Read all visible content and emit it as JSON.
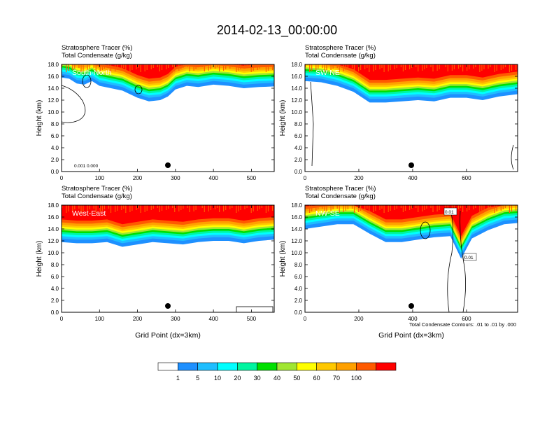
{
  "title": "2014-02-13_00:00:00",
  "colors": {
    "scale": [
      "#ffffff",
      "#1e90ff",
      "#1ebeff",
      "#00ffff",
      "#00f5a0",
      "#00e000",
      "#a0e632",
      "#ffff00",
      "#ffc800",
      "#ffa000",
      "#ff5a00",
      "#ff0000"
    ]
  },
  "colorbar": {
    "labels": [
      "1",
      "5",
      "10",
      "20",
      "30",
      "40",
      "50",
      "60",
      "70",
      "100"
    ]
  },
  "chart_data": [
    {
      "type": "heatmap",
      "panel_id": "south-north",
      "label_line1": "Stratosphere Tracer   (%)",
      "label_line2": "Total Condensate   (g/kg)",
      "inset_label": "South-North",
      "ylabel": "Height (km)",
      "xlabel": "",
      "xlim": [
        0,
        560
      ],
      "ylim": [
        0,
        18
      ],
      "xticks": [
        "0",
        "100",
        "200",
        "300",
        "400",
        "500"
      ],
      "xtick_values": [
        0,
        100,
        200,
        300,
        400,
        500
      ],
      "yticks": [
        "0.0",
        "2.0",
        "4.0",
        "6.0",
        "8.0",
        "10.0",
        "12.0",
        "14.0",
        "16.0",
        "18.0"
      ],
      "marker_x": 280,
      "contour_labels": [
        "0.001",
        "0.000"
      ],
      "band_bottom": [
        [
          0,
          15.8
        ],
        [
          20,
          15.6
        ],
        [
          40,
          14.8
        ],
        [
          60,
          14.6
        ],
        [
          80,
          15.2
        ],
        [
          100,
          14.4
        ],
        [
          130,
          14.0
        ],
        [
          160,
          13.6
        ],
        [
          200,
          12.4
        ],
        [
          230,
          11.8
        ],
        [
          260,
          12.0
        ],
        [
          280,
          12.6
        ],
        [
          300,
          13.8
        ],
        [
          330,
          14.4
        ],
        [
          360,
          14.2
        ],
        [
          400,
          14.6
        ],
        [
          440,
          14.4
        ],
        [
          480,
          14.0
        ],
        [
          520,
          14.2
        ],
        [
          560,
          14.3
        ]
      ]
    },
    {
      "type": "heatmap",
      "panel_id": "sw-ne",
      "label_line1": "Stratosphere Tracer   (%)",
      "label_line2": "Total Condensate   (g/kg)",
      "inset_label": "SW-NE",
      "ylabel": "Height (km)",
      "xlabel": "",
      "xlim": [
        0,
        790
      ],
      "ylim": [
        0,
        18
      ],
      "xticks": [
        "0",
        "200",
        "400",
        "600"
      ],
      "xtick_values": [
        0,
        200,
        400,
        600
      ],
      "yticks": [
        "0.0",
        "2.0",
        "4.0",
        "6.0",
        "8.0",
        "10.0",
        "12.0",
        "14.0",
        "16.0",
        "18.0"
      ],
      "marker_x": 395,
      "contour_labels": [],
      "band_bottom": [
        [
          0,
          15.2
        ],
        [
          60,
          15.0
        ],
        [
          120,
          14.4
        ],
        [
          180,
          13.4
        ],
        [
          240,
          11.6
        ],
        [
          300,
          11.6
        ],
        [
          360,
          11.8
        ],
        [
          420,
          12.0
        ],
        [
          480,
          11.8
        ],
        [
          540,
          12.4
        ],
        [
          600,
          12.4
        ],
        [
          660,
          12.0
        ],
        [
          720,
          12.6
        ],
        [
          790,
          13.0
        ]
      ]
    },
    {
      "type": "heatmap",
      "panel_id": "west-east",
      "label_line1": "Stratosphere Tracer   (%)",
      "label_line2": "Total Condensate   (g/kg)",
      "inset_label": "West-East",
      "ylabel": "Height (km)",
      "xlabel": "Grid Point (dx=3km)",
      "xlim": [
        0,
        560
      ],
      "ylim": [
        0,
        18
      ],
      "xticks": [
        "0",
        "100",
        "200",
        "300",
        "400",
        "500"
      ],
      "xtick_values": [
        0,
        100,
        200,
        300,
        400,
        500
      ],
      "yticks": [
        "0.0",
        "2.0",
        "4.0",
        "6.0",
        "8.0",
        "10.0",
        "12.0",
        "14.0",
        "16.0",
        "18.0"
      ],
      "marker_x": 280,
      "contour_labels": [],
      "band_bottom": [
        [
          0,
          11.8
        ],
        [
          40,
          11.6
        ],
        [
          80,
          11.6
        ],
        [
          120,
          11.8
        ],
        [
          160,
          11.0
        ],
        [
          200,
          11.4
        ],
        [
          240,
          11.8
        ],
        [
          280,
          11.6
        ],
        [
          320,
          11.4
        ],
        [
          360,
          11.8
        ],
        [
          400,
          12.0
        ],
        [
          440,
          12.0
        ],
        [
          480,
          11.6
        ],
        [
          520,
          12.0
        ],
        [
          560,
          12.2
        ]
      ]
    },
    {
      "type": "heatmap",
      "panel_id": "nw-se",
      "label_line1": "Stratosphere Tracer   (%)",
      "label_line2": "Total Condensate   (g/kg)",
      "inset_label": "NW-SE",
      "ylabel": "Height (km)",
      "xlabel": "Grid Point (dx=3km)",
      "xlim": [
        0,
        790
      ],
      "ylim": [
        0,
        18
      ],
      "xticks": [
        "0",
        "200",
        "400",
        "600"
      ],
      "xtick_values": [
        0,
        200,
        400,
        600
      ],
      "yticks": [
        "0.0",
        "2.0",
        "4.0",
        "6.0",
        "8.0",
        "10.0",
        "12.0",
        "14.0",
        "16.0",
        "18.0"
      ],
      "marker_x": 395,
      "contour_labels": [
        "0.01",
        "0.01"
      ],
      "footnote": "Total Condensate Contours: .01 to .01 by .000",
      "band_bottom": [
        [
          0,
          14.0
        ],
        [
          60,
          14.4
        ],
        [
          120,
          14.8
        ],
        [
          180,
          14.8
        ],
        [
          240,
          13.2
        ],
        [
          300,
          11.8
        ],
        [
          360,
          11.8
        ],
        [
          420,
          12.2
        ],
        [
          480,
          12.6
        ],
        [
          540,
          12.8
        ],
        [
          580,
          9.0
        ],
        [
          620,
          12.4
        ],
        [
          680,
          13.8
        ],
        [
          740,
          14.8
        ],
        [
          790,
          15.0
        ]
      ]
    }
  ]
}
